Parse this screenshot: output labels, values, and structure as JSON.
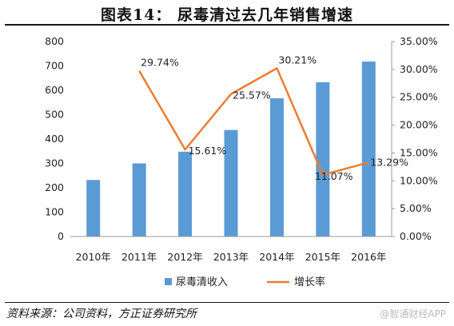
{
  "title": "图表14：   尿毒清过去几年销售增速",
  "source": "资料来源：公司资料，方正证券研究所",
  "watermark": "@智通财经APP",
  "colors": {
    "bar": "#5b9bd5",
    "line": "#ed7d31"
  },
  "chart_data": {
    "type": "bar+line",
    "categories": [
      "2010年",
      "2011年",
      "2012年",
      "2013年",
      "2014年",
      "2015年",
      "2016年"
    ],
    "series": [
      {
        "name": "尿毒清收入",
        "type": "bar",
        "axis": "left",
        "values": [
          232,
          300,
          348,
          437,
          567,
          633,
          718
        ]
      },
      {
        "name": "增长率",
        "type": "line",
        "axis": "right",
        "values": [
          null,
          29.74,
          15.61,
          25.57,
          30.21,
          11.07,
          13.29
        ],
        "labels": [
          null,
          "29.74%",
          "15.61%",
          "25.57%",
          "30.21%",
          "11.07%",
          "13.29%"
        ]
      }
    ],
    "y_left": {
      "min": 0,
      "max": 800,
      "ticks": [
        "0",
        "100",
        "200",
        "300",
        "400",
        "500",
        "600",
        "700",
        "800"
      ]
    },
    "y_right": {
      "min": 0,
      "max": 35,
      "ticks": [
        "0.00%",
        "5.00%",
        "10.00%",
        "15.00%",
        "20.00%",
        "25.00%",
        "30.00%",
        "35.00%"
      ]
    },
    "grid": false,
    "legend_position": "bottom"
  }
}
